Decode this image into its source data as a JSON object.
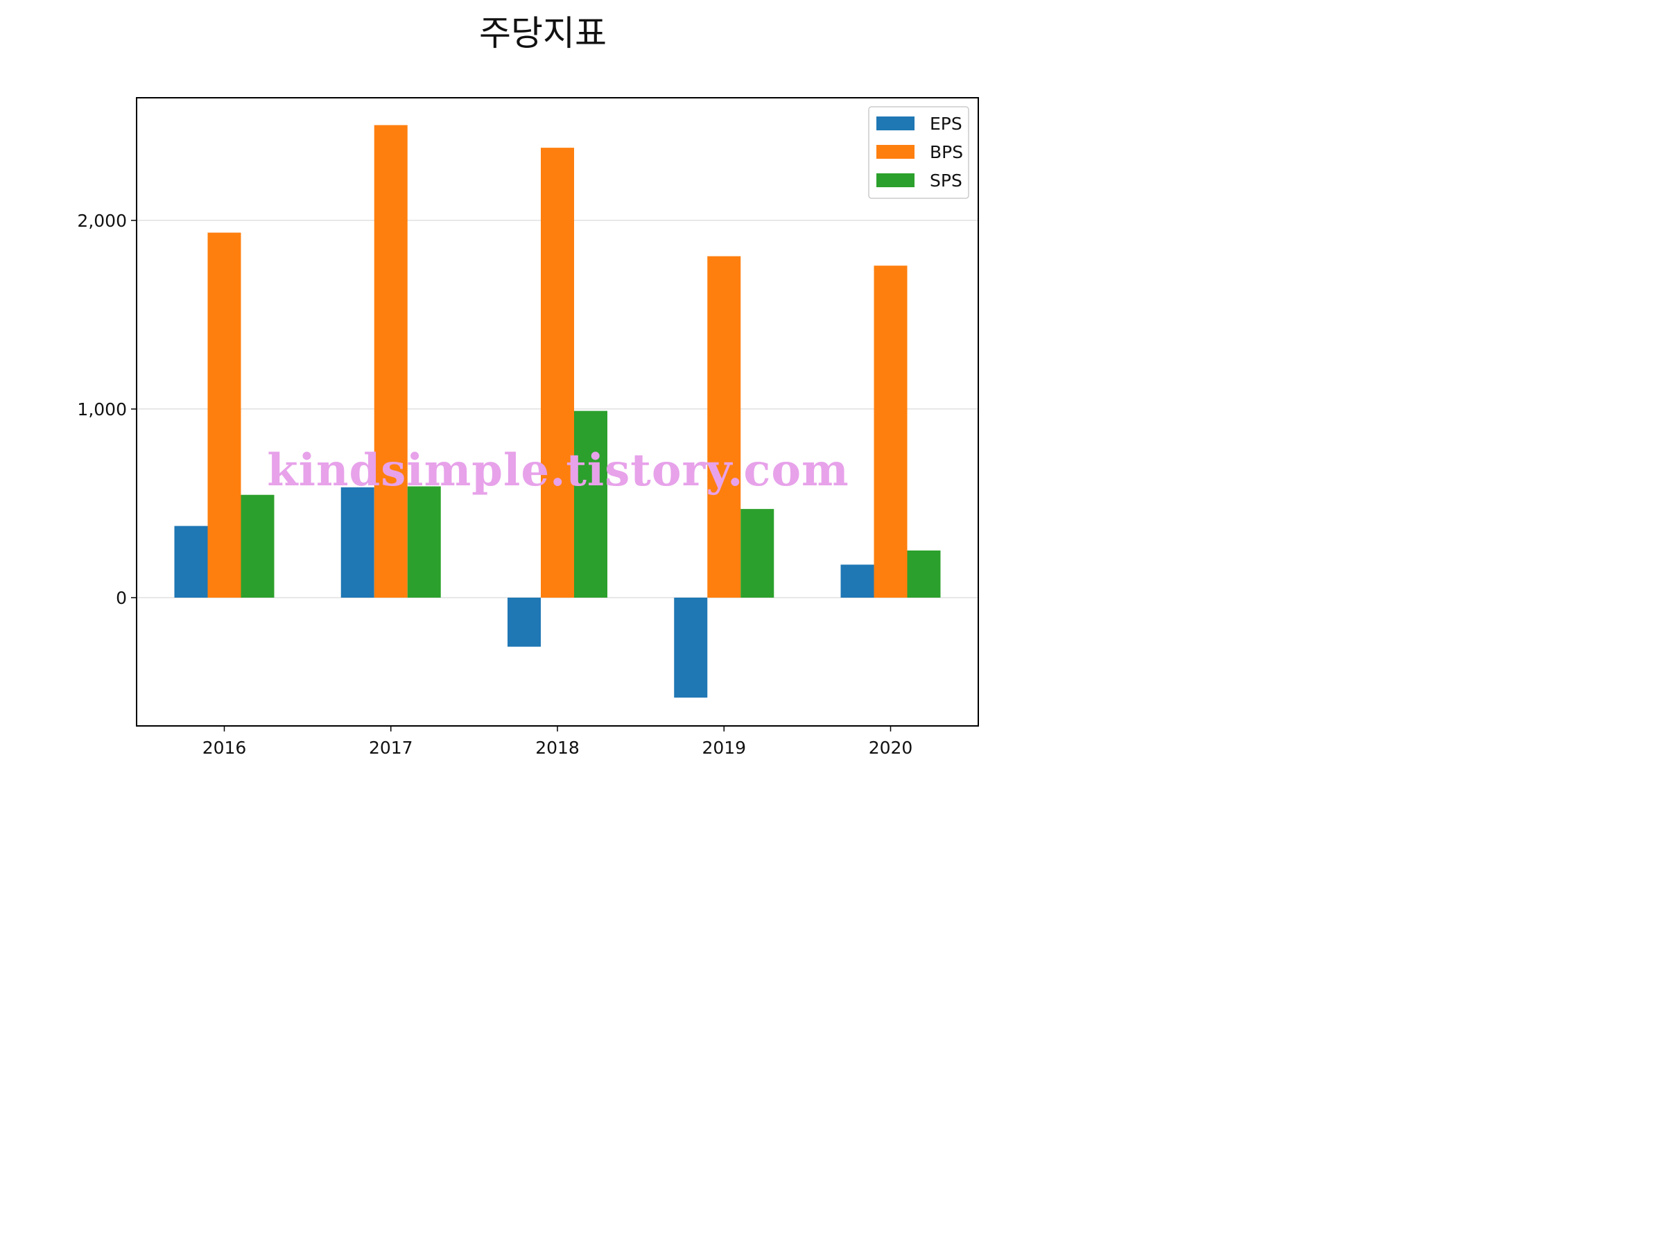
{
  "chart_data": {
    "type": "bar",
    "title": "주당지표",
    "xlabel": "",
    "ylabel": "",
    "categories": [
      "2016",
      "2017",
      "2018",
      "2019",
      "2020"
    ],
    "series": [
      {
        "name": "EPS",
        "color": "#1f77b4",
        "values": [
          380,
          585,
          -260,
          -530,
          175
        ]
      },
      {
        "name": "BPS",
        "color": "#ff7f0e",
        "values": [
          1935,
          2505,
          2385,
          1810,
          1760
        ]
      },
      {
        "name": "SPS",
        "color": "#2ca02c",
        "values": [
          545,
          590,
          990,
          470,
          250
        ]
      }
    ],
    "ylim": [
      -680,
      2650
    ],
    "yticks": [
      0,
      1000,
      2000
    ],
    "ytick_labels": [
      "0",
      "1,000",
      "2,000"
    ],
    "grid": "horizontal",
    "legend_position": "top-right",
    "watermark": "kindsimple.tistory.com"
  }
}
